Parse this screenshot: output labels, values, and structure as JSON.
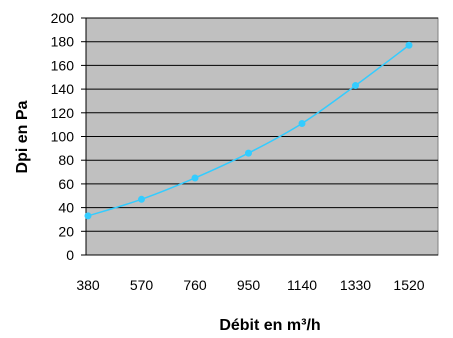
{
  "chart_data": {
    "type": "line",
    "title": "",
    "xlabel": "Débit en m³/h",
    "ylabel": "Dpi en Pa",
    "categories": [
      "380",
      "570",
      "760",
      "950",
      "1140",
      "1330",
      "1520"
    ],
    "y_ticks": [
      "0",
      "20",
      "40",
      "60",
      "80",
      "100",
      "120",
      "140",
      "160",
      "180",
      "200"
    ],
    "ylim": [
      0,
      200
    ],
    "grid": "horizontal",
    "legend": "none",
    "series": [
      {
        "values": [
          33,
          47,
          65,
          86,
          111,
          143,
          177
        ]
      }
    ],
    "colors": {
      "plot_background": "#c0c0c0",
      "line": "#33ccff",
      "gridline": "#000000"
    }
  }
}
